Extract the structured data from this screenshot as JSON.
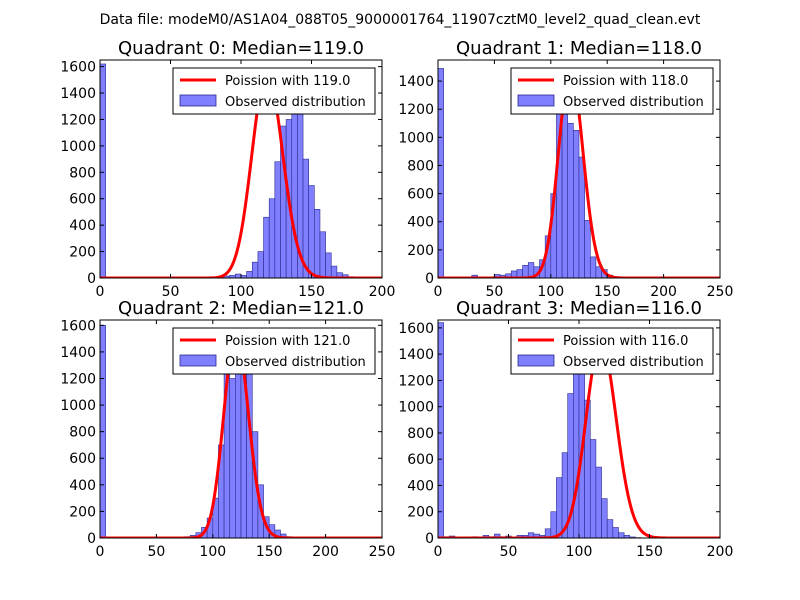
{
  "figure": {
    "suptitle": "Data file: modeM0/AS1A04_088T05_9000001764_11907cztM0_level2_quad_clean.evt"
  },
  "colors": {
    "hist_fill": "#7f7fff",
    "hist_edge": "#2a2a8f",
    "poisson_line": "#ff0000",
    "axis": "#000000",
    "background": "#ffffff"
  },
  "chart_data": [
    {
      "type": "bar",
      "title": "Quadrant 0: Median=119.0",
      "xlim": [
        0,
        200
      ],
      "ylim": [
        0,
        1650
      ],
      "xticks": [
        0,
        50,
        100,
        150,
        200
      ],
      "yticks": [
        0,
        200,
        400,
        600,
        800,
        1000,
        1200,
        1400,
        1600
      ],
      "legend": {
        "location": "top-right",
        "line_label": "Poission with 119.0",
        "bar_label": "Observed distribution"
      },
      "bin_width": 4,
      "bin_edges_start": 0,
      "counts": [
        1620,
        0,
        0,
        0,
        0,
        0,
        0,
        0,
        0,
        0,
        0,
        0,
        0,
        0,
        0,
        0,
        0,
        0,
        0,
        0,
        0,
        10,
        15,
        20,
        30,
        20,
        50,
        120,
        200,
        460,
        600,
        880,
        1150,
        1200,
        1500,
        1270,
        900,
        700,
        520,
        350,
        190,
        90,
        40,
        25,
        10,
        5,
        2,
        0,
        0,
        0
      ],
      "poisson_mean": 119.0,
      "poisson_scale": 1550
    },
    {
      "type": "bar",
      "title": "Quadrant 1: Median=118.0",
      "xlim": [
        0,
        250
      ],
      "ylim": [
        0,
        1550
      ],
      "xticks": [
        0,
        50,
        100,
        150,
        200,
        250
      ],
      "yticks": [
        0,
        200,
        400,
        600,
        800,
        1000,
        1200,
        1400
      ],
      "legend": {
        "location": "top-right",
        "line_label": "Poission with 118.0",
        "bar_label": "Observed distribution"
      },
      "bin_width": 5,
      "bin_edges_start": 0,
      "counts": [
        1490,
        0,
        0,
        0,
        0,
        0,
        20,
        5,
        0,
        0,
        25,
        20,
        30,
        50,
        60,
        90,
        110,
        80,
        130,
        300,
        600,
        1230,
        1300,
        1100,
        1050,
        860,
        410,
        150,
        80,
        60,
        20,
        10,
        5,
        2,
        0,
        0,
        0,
        0,
        0,
        0,
        0,
        0,
        0,
        0,
        0,
        0,
        0,
        0,
        0,
        0
      ],
      "poisson_mean": 118.0,
      "poisson_scale": 1480
    },
    {
      "type": "bar",
      "title": "Quadrant 2: Median=121.0",
      "xlim": [
        0,
        250
      ],
      "ylim": [
        0,
        1640
      ],
      "xticks": [
        0,
        50,
        100,
        150,
        200,
        250
      ],
      "yticks": [
        0,
        200,
        400,
        600,
        800,
        1000,
        1200,
        1400,
        1600
      ],
      "legend": {
        "location": "top-right",
        "line_label": "Poission with 121.0",
        "bar_label": "Observed distribution"
      },
      "bin_width": 5,
      "bin_edges_start": 0,
      "counts": [
        1600,
        0,
        0,
        0,
        0,
        0,
        0,
        0,
        0,
        0,
        0,
        0,
        0,
        0,
        5,
        10,
        20,
        40,
        80,
        150,
        300,
        700,
        1250,
        1200,
        1300,
        1380,
        1300,
        800,
        400,
        160,
        100,
        60,
        30,
        10,
        5,
        2,
        0,
        0,
        0,
        0,
        0,
        0,
        0,
        0,
        0,
        0,
        0,
        0,
        0,
        0
      ],
      "poisson_mean": 121.0,
      "poisson_scale": 1530
    },
    {
      "type": "bar",
      "title": "Quadrant 3: Median=116.0",
      "xlim": [
        0,
        200
      ],
      "ylim": [
        0,
        1660
      ],
      "xticks": [
        0,
        50,
        100,
        150,
        200
      ],
      "yticks": [
        0,
        200,
        400,
        600,
        800,
        1000,
        1200,
        1400,
        1600
      ],
      "legend": {
        "location": "top-right",
        "line_label": "Poission with 116.0",
        "bar_label": "Observed distribution"
      },
      "bin_width": 4,
      "bin_edges_start": 0,
      "counts": [
        1640,
        10,
        15,
        5,
        0,
        5,
        10,
        5,
        20,
        10,
        30,
        10,
        15,
        5,
        20,
        20,
        40,
        30,
        20,
        70,
        200,
        460,
        650,
        1100,
        1400,
        1450,
        1050,
        750,
        540,
        300,
        140,
        80,
        40,
        20,
        8,
        3,
        0,
        0,
        0,
        0,
        0,
        0,
        0,
        0,
        0,
        0,
        0,
        0,
        0,
        0
      ],
      "poisson_mean": 116.0,
      "poisson_scale": 1490
    }
  ]
}
